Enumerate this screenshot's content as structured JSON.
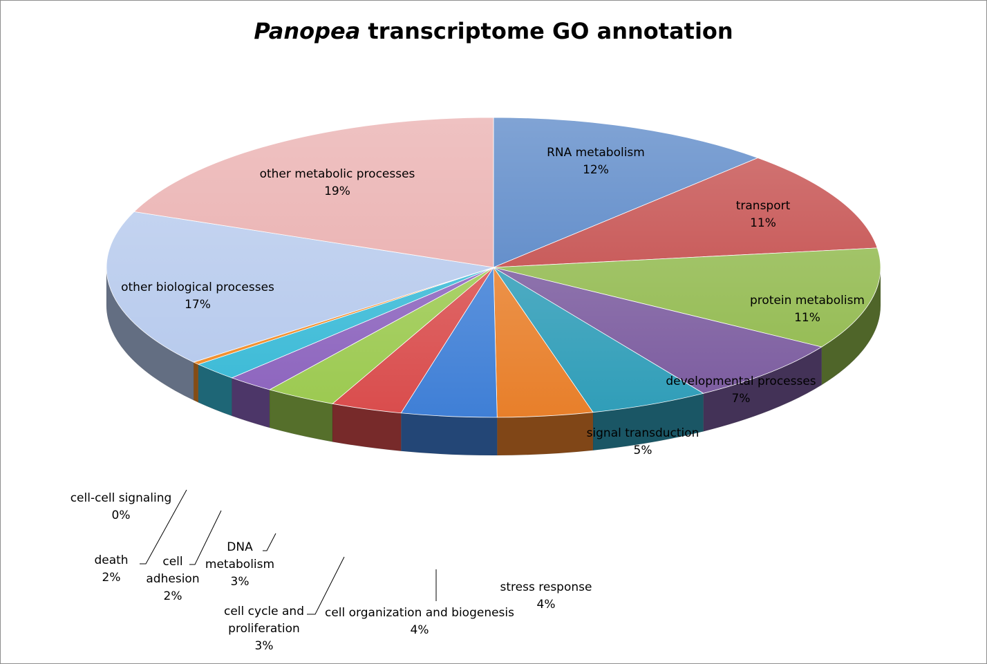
{
  "chart_data": {
    "type": "pie",
    "title_emphasis": "Panopea",
    "title_rest": " transcriptome GO annotation",
    "slices": [
      {
        "label": "RNA metabolism",
        "pct_label": "12%",
        "value": 12,
        "color": "#4a7cc2"
      },
      {
        "label": "transport",
        "pct_label": "11%",
        "value": 11,
        "color": "#c0403f"
      },
      {
        "label": "protein metabolism",
        "pct_label": "11%",
        "value": 11,
        "color": "#8fb84a"
      },
      {
        "label": "developmental processes",
        "pct_label": "7%",
        "value": 7,
        "color": "#7a5a9e"
      },
      {
        "label": "signal transduction",
        "pct_label": "5%",
        "value": 5,
        "color": "#2f9db8"
      },
      {
        "label": "stress response",
        "pct_label": "4%",
        "value": 4,
        "color": "#e87f2a"
      },
      {
        "label": "cell organization and biogenesis",
        "pct_label": "4%",
        "value": 4,
        "color": "#3f7fd6"
      },
      {
        "label": "cell cycle and proliferation",
        "pct_label": "3%",
        "value": 3,
        "color": "#d94c4c"
      },
      {
        "label": "DNA metabolism",
        "pct_label": "3%",
        "value": 3,
        "color": "#9bc94f"
      },
      {
        "label": "cell adhesion",
        "pct_label": "2%",
        "value": 2,
        "color": "#8b62bd"
      },
      {
        "label": "death",
        "pct_label": "2%",
        "value": 2,
        "color": "#37b9d6"
      },
      {
        "label": "cell-cell signaling",
        "pct_label": "0%",
        "value": 0.3,
        "color": "#f08a24"
      },
      {
        "label": "other biological processes",
        "pct_label": "17%",
        "value": 17,
        "color": "#b4c8ec"
      },
      {
        "label": "other metabolic processes",
        "pct_label": "19%",
        "value": 19,
        "color": "#e8a8a8"
      }
    ]
  }
}
